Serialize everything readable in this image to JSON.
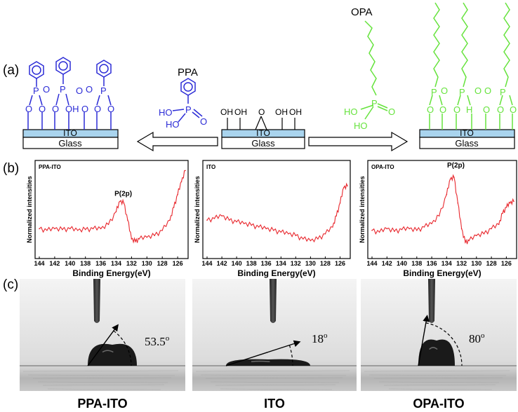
{
  "panels": {
    "a": "(a)",
    "b": "(b)",
    "c": "(c)"
  },
  "colors": {
    "ppa": "#2b2bd6",
    "opa": "#66e33d",
    "ito": "#a9d4ee",
    "spectrum": "#e8282e"
  },
  "molecules": {
    "ppa_label": "PPA",
    "opa_label": "OPA",
    "p": "P",
    "o": "O",
    "oh": "OH",
    "ho": "HO",
    "h": "H"
  },
  "substrates": {
    "ito": "ITO",
    "glass": "Glass"
  },
  "spectra": {
    "xlabel": "Binding Energy(eV)",
    "ylabel": "Normalized intensities",
    "xticks": [
      "144",
      "142",
      "140",
      "138",
      "136",
      "134",
      "132",
      "130",
      "128",
      "126"
    ],
    "peak_label": "P(2p)",
    "names": [
      "PPA-ITO",
      "ITO",
      "OPA-ITO"
    ]
  },
  "chart_data": [
    {
      "type": "line",
      "title": "PPA-ITO",
      "xlabel": "Binding Energy(eV)",
      "ylabel": "Normalized intensities",
      "xlim": [
        144,
        125
      ],
      "x": [
        144,
        143,
        142,
        141,
        140,
        139,
        138,
        137,
        136,
        135,
        134,
        133.5,
        133,
        132.5,
        132,
        131.5,
        131,
        130,
        129,
        128,
        127,
        126.5,
        126,
        125.5,
        125
      ],
      "y": [
        0.3,
        0.28,
        0.3,
        0.29,
        0.3,
        0.28,
        0.29,
        0.3,
        0.3,
        0.35,
        0.5,
        0.62,
        0.6,
        0.4,
        0.18,
        0.15,
        0.18,
        0.2,
        0.22,
        0.28,
        0.4,
        0.55,
        0.7,
        0.85,
        0.98
      ]
    },
    {
      "type": "line",
      "title": "ITO",
      "xlabel": "Binding Energy(eV)",
      "ylabel": "Normalized intensities",
      "xlim": [
        144,
        125
      ],
      "x": [
        144,
        143,
        142,
        141,
        140,
        139,
        138,
        137,
        136,
        135,
        134,
        133,
        132,
        131,
        130,
        129,
        128,
        127,
        126.5,
        126,
        125.5,
        125
      ],
      "y": [
        0.4,
        0.42,
        0.45,
        0.4,
        0.38,
        0.36,
        0.34,
        0.32,
        0.3,
        0.28,
        0.26,
        0.24,
        0.22,
        0.18,
        0.16,
        0.18,
        0.24,
        0.32,
        0.45,
        0.6,
        0.78,
        0.8
      ]
    },
    {
      "type": "line",
      "title": "OPA-ITO",
      "xlabel": "Binding Energy(eV)",
      "ylabel": "Normalized intensities",
      "xlim": [
        144,
        125
      ],
      "x": [
        144,
        143,
        142,
        141,
        140,
        139,
        138,
        137,
        136,
        135,
        134,
        133.5,
        133,
        132.5,
        132,
        131.5,
        131,
        130,
        129,
        128,
        127,
        126.5,
        126,
        125.5,
        125
      ],
      "y": [
        0.28,
        0.26,
        0.3,
        0.27,
        0.29,
        0.3,
        0.28,
        0.32,
        0.36,
        0.45,
        0.7,
        0.88,
        0.9,
        0.6,
        0.3,
        0.14,
        0.16,
        0.22,
        0.24,
        0.3,
        0.35,
        0.48,
        0.55,
        0.6,
        0.62
      ]
    }
  ],
  "contact": {
    "names": [
      "PPA-ITO",
      "ITO",
      "OPA-ITO"
    ],
    "angles": [
      "53.5",
      "18",
      "80"
    ],
    "degree": "o"
  }
}
